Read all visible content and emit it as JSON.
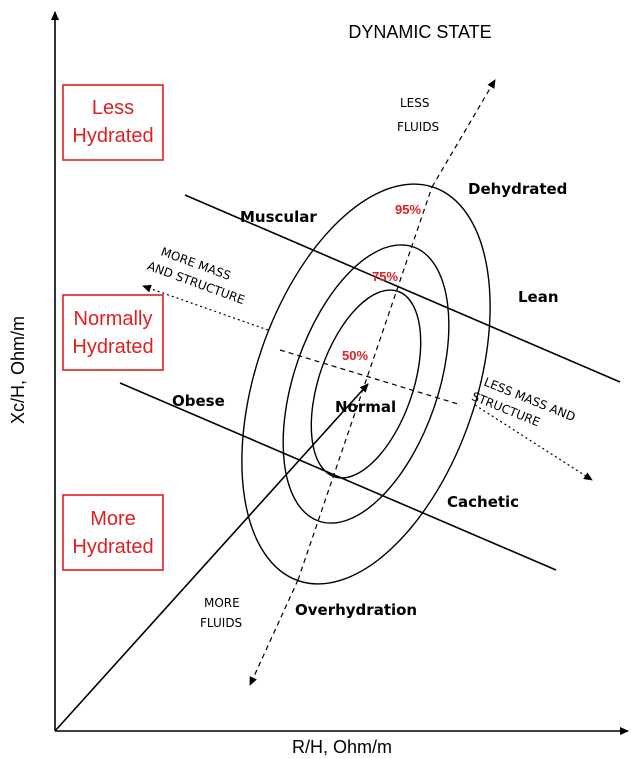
{
  "title": "DYNAMIC STATE",
  "axes": {
    "y_label": "Xc/H, Ohm/m",
    "x_label": "R/H, Ohm/m"
  },
  "hydration_boxes": [
    {
      "lines": [
        "Less",
        "Hydrated"
      ]
    },
    {
      "lines": [
        "Normally",
        "Hydrated"
      ]
    },
    {
      "lines": [
        "More",
        "Hydrated"
      ]
    }
  ],
  "regions": [
    "Dehydrated",
    "Muscular",
    "Lean",
    "Obese",
    "Normal",
    "Cachetic",
    "Overhydration"
  ],
  "arrow_labels": {
    "less_fluids": [
      "LESS",
      "FLUIDS"
    ],
    "more_mass": [
      "MORE MASS",
      "AND STRUCTURE"
    ],
    "less_mass": [
      "LESS MASS AND",
      "STRUCTURE"
    ],
    "more_fluids": [
      "MORE",
      "FLUIDS"
    ]
  },
  "tolerance_ellipses": [
    "95%",
    "75%",
    "50%"
  ]
}
